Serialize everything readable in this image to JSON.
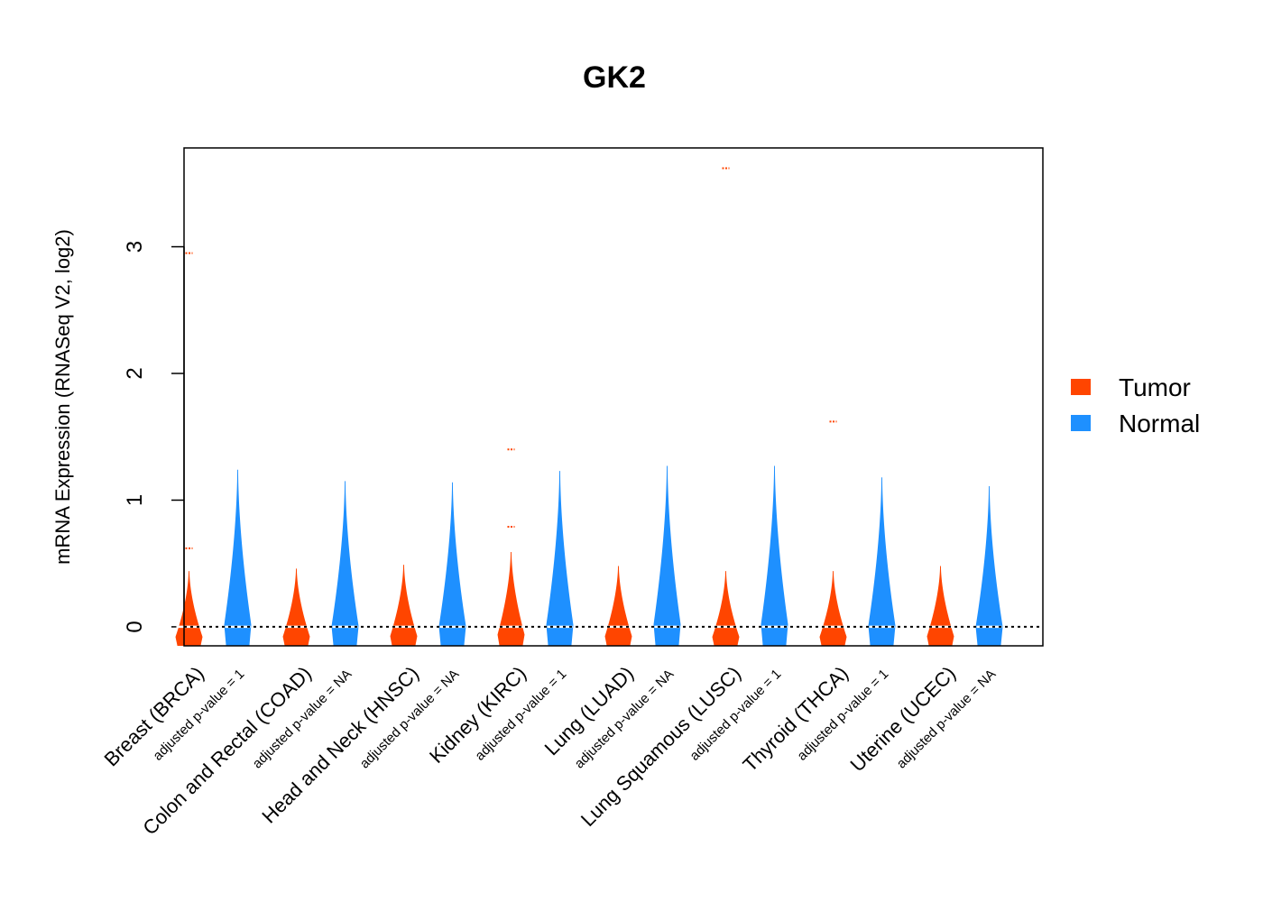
{
  "chart_data": {
    "type": "violin",
    "title": "GK2",
    "xlabel": "",
    "ylabel": "mRNA Expression (RNASeq V2, log2)",
    "ylim": [
      -0.15,
      3.78
    ],
    "yticks": [
      0,
      1,
      2,
      3
    ],
    "reference_line": 0,
    "legend": {
      "placement": "right",
      "items": [
        {
          "name": "Tumor",
          "color": "#FF4500"
        },
        {
          "name": "Normal",
          "color": "#1E90FF"
        }
      ]
    },
    "categories": [
      {
        "label": "Breast (BRCA)",
        "pvalue_label": "adjusted p-value = 1",
        "tumor": {
          "max": 0.44,
          "outliers": [
            0.62,
            2.95
          ]
        },
        "normal": {
          "max": 1.24,
          "outliers": []
        }
      },
      {
        "label": "Colon and Rectal (COAD)",
        "pvalue_label": "adjusted p-value = NA",
        "tumor": {
          "max": 0.46,
          "outliers": []
        },
        "normal": {
          "max": 1.15,
          "outliers": []
        }
      },
      {
        "label": "Head and Neck (HNSC)",
        "pvalue_label": "adjusted p-value = NA",
        "tumor": {
          "max": 0.49,
          "outliers": []
        },
        "normal": {
          "max": 1.14,
          "outliers": []
        }
      },
      {
        "label": "Kidney (KIRC)",
        "pvalue_label": "adjusted p-value = 1",
        "tumor": {
          "max": 0.59,
          "outliers": [
            0.79,
            1.4
          ]
        },
        "normal": {
          "max": 1.23,
          "outliers": []
        }
      },
      {
        "label": "Lung (LUAD)",
        "pvalue_label": "adjusted p-value = NA",
        "tumor": {
          "max": 0.48,
          "outliers": []
        },
        "normal": {
          "max": 1.27,
          "outliers": []
        }
      },
      {
        "label": "Lung Squamous (LUSC)",
        "pvalue_label": "adjusted p-value = 1",
        "tumor": {
          "max": 0.44,
          "outliers": [
            3.62
          ]
        },
        "normal": {
          "max": 1.27,
          "outliers": []
        }
      },
      {
        "label": "Thyroid (THCA)",
        "pvalue_label": "adjusted p-value = 1",
        "tumor": {
          "max": 0.44,
          "outliers": [
            1.62
          ]
        },
        "normal": {
          "max": 1.18,
          "outliers": []
        }
      },
      {
        "label": "Uterine (UCEC)",
        "pvalue_label": "adjusted p-value = NA",
        "tumor": {
          "max": 0.48,
          "outliers": []
        },
        "normal": {
          "max": 1.11,
          "outliers": []
        }
      }
    ]
  }
}
